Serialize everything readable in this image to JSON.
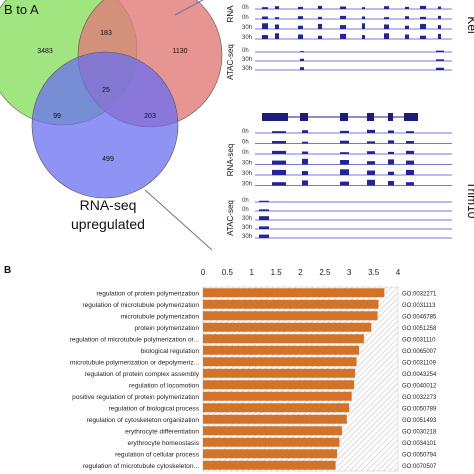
{
  "panel_a": {
    "venn": {
      "label_top_left": "B to A",
      "regions": {
        "green_only": "3483",
        "red_only": "1130",
        "blue_only": "499",
        "green_red": "183",
        "green_blue": "99",
        "red_blue": "203",
        "center": "25"
      },
      "blue_label_line1": "RNA-seq",
      "blue_label_line2": "upregulated",
      "colors": {
        "green": "#8fe06a",
        "red": "#e07a78",
        "blue": "#6a6ff0"
      }
    },
    "track_top": {
      "gene": "Kel",
      "rna_label": "RNA",
      "atac_label": "ATAC-seq",
      "rna_rows": [
        "0h",
        "0h",
        "30h",
        "30h"
      ],
      "atac_rows": [
        "0h",
        "30h",
        "30h"
      ]
    },
    "track_bottom": {
      "gene": "Trim10",
      "rna_label": "RNA-seq",
      "atac_label": "ATAC-seq",
      "rna_rows": [
        "0h",
        "0h",
        "0h",
        "30h",
        "30h",
        "30h"
      ],
      "atac_rows": [
        "0h",
        "0h",
        "30h",
        "30h",
        "30h"
      ]
    }
  },
  "panel_b": {
    "label": "B"
  },
  "chart_data": {
    "type": "bar",
    "orientation": "horizontal",
    "xlim": [
      0,
      4
    ],
    "xticks": [
      "0",
      "0.5",
      "1",
      "1.5",
      "2",
      "2.5",
      "3",
      "3.5",
      "4"
    ],
    "bar_color": "#d2732a",
    "categories": [
      "regulation of protein polymerization",
      "regulation of microtubule polymerization",
      "microtubule polymerization",
      "protein polymerization",
      "regulation of microtubule polymerization or...",
      "biological regulation",
      "microtubule polymerization or depolymeriz...",
      "regulation of protein complex assembly",
      "regulation of locomotion",
      "positive regulation of protein polymerization",
      "regulation of biological process",
      "regulation of cytoskeleton organization",
      "erythrocyte differentiation",
      "erythrocyte homeostasis",
      "regulation of cellular process",
      "regulation of microtubule cytoskeleton..."
    ],
    "go_ids": [
      "GO:0032271",
      "GO:0031113",
      "GO:0046785",
      "GO:0051258",
      "GO:0031110",
      "GO:0065007",
      "GO:0031109",
      "GO:0043254",
      "GO:0040012",
      "GO:0032273",
      "GO:0050789",
      "GO:0051493",
      "GO:0030218",
      "GO:0034101",
      "GO:0050794",
      "GO:0070507"
    ],
    "values": [
      3.72,
      3.6,
      3.58,
      3.45,
      3.3,
      3.2,
      3.15,
      3.12,
      3.1,
      3.05,
      3.0,
      2.95,
      2.85,
      2.8,
      2.75,
      2.72
    ],
    "grid": false
  }
}
